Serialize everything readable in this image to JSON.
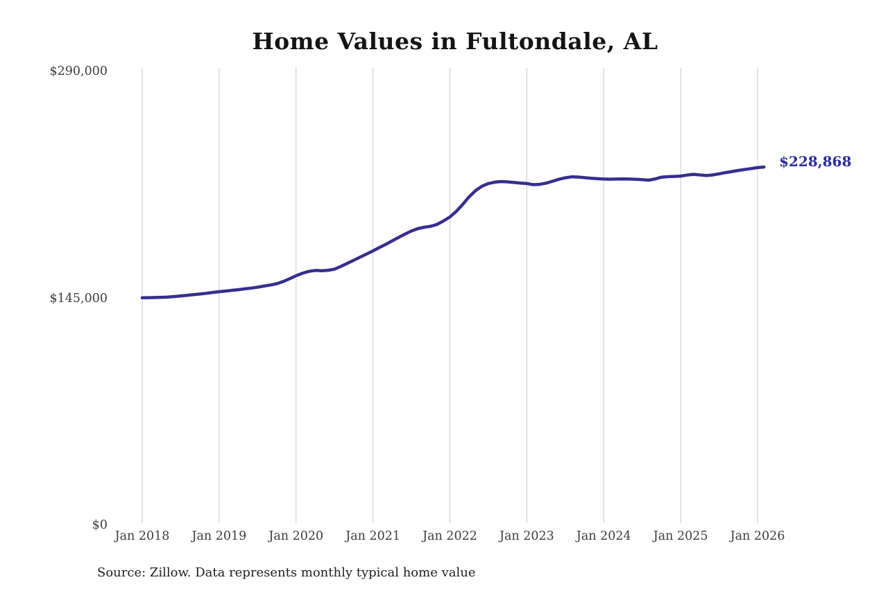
{
  "chart_data": {
    "type": "line",
    "title": "Home Values in Fultondale, AL",
    "source_note": "Source: Zillow. Data represents monthly typical home value",
    "end_label": "$228,868",
    "latest_value": 228868,
    "frequency": "monthly",
    "x_start": "Jan 2018",
    "x_end": "Feb 2026",
    "x_tick_labels": [
      "Jan 2018",
      "Jan 2019",
      "Jan 2020",
      "Jan 2021",
      "Jan 2022",
      "Jan 2023",
      "Jan 2024",
      "Jan 2025",
      "Jan 2026"
    ],
    "y_ticks": [
      {
        "label": "$0",
        "value": 0
      },
      {
        "label": "$145,000",
        "value": 145000
      },
      {
        "label": "$290,000",
        "value": 290000
      }
    ],
    "ylim": [
      0,
      290000
    ],
    "grid": "vertical-only",
    "legend": "none",
    "colors": {
      "line": "#352f8f",
      "end_label": "#2b2b9e",
      "gridline": "#c8c8c8"
    },
    "series": [
      {
        "name": "Typical home value (USD)",
        "values": [
          145300,
          145400,
          145500,
          145600,
          145800,
          146100,
          146500,
          146900,
          147300,
          147700,
          148200,
          148700,
          149200,
          149600,
          150100,
          150500,
          151000,
          151500,
          152100,
          152800,
          153500,
          154300,
          155700,
          157500,
          159400,
          161000,
          162200,
          162800,
          162600,
          162900,
          163600,
          165400,
          167300,
          169300,
          171300,
          173300,
          175300,
          177400,
          179500,
          181700,
          183900,
          186000,
          188000,
          189500,
          190400,
          191000,
          192200,
          194400,
          197000,
          200500,
          205000,
          209800,
          213800,
          216600,
          218300,
          219200,
          219600,
          219400,
          219000,
          218600,
          218300,
          217600,
          217800,
          218600,
          219800,
          221000,
          222000,
          222600,
          222500,
          222100,
          221700,
          221400,
          221200,
          221100,
          221200,
          221300,
          221200,
          221000,
          220800,
          220500,
          221200,
          222400,
          222700,
          222900,
          223100,
          223700,
          224200,
          223800,
          223400,
          223800,
          224500,
          225300,
          226000,
          226700,
          227300,
          227900,
          228500,
          228868
        ]
      }
    ]
  }
}
